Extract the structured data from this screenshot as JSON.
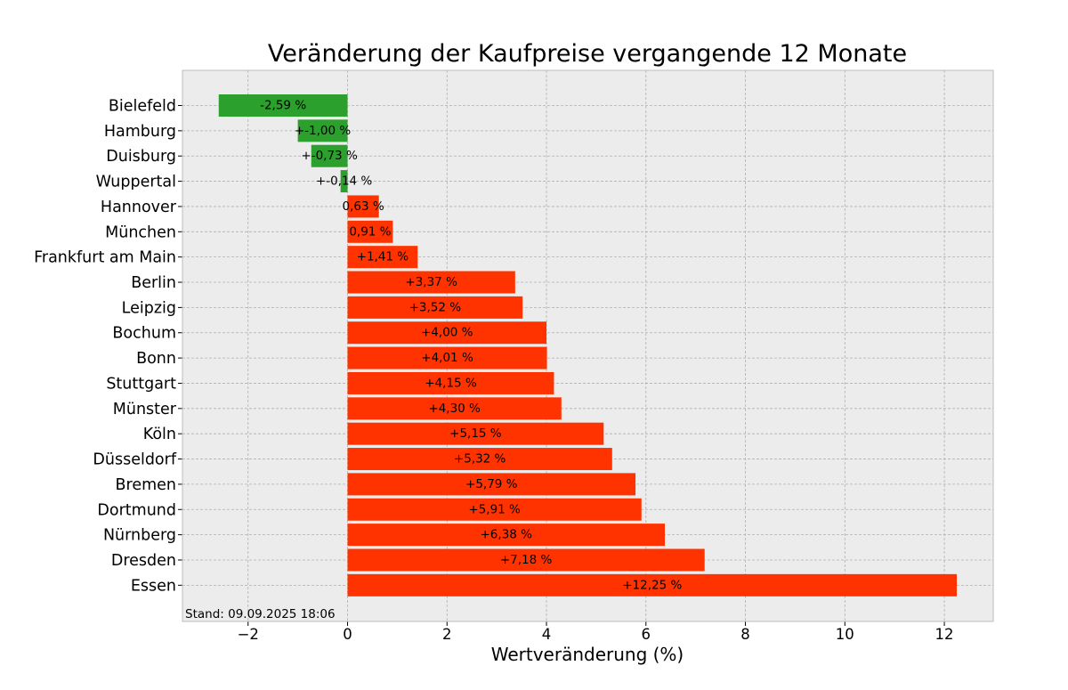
{
  "chart_data": {
    "type": "bar",
    "orientation": "horizontal",
    "title": "Veränderung der Kaufpreise vergangende 12 Monate",
    "xlabel": "Wertveränderung (%)",
    "ylabel": "",
    "xlim": [
      -3.3,
      13.0
    ],
    "xticks": [
      -2,
      0,
      2,
      4,
      6,
      8,
      10,
      12
    ],
    "xtick_labels": [
      "−2",
      "0",
      "2",
      "4",
      "6",
      "8",
      "10",
      "12"
    ],
    "grid": true,
    "categories": [
      "Bielefeld",
      "Hamburg",
      "Duisburg",
      "Wuppertal",
      "Hannover",
      "München",
      "Frankfurt am Main",
      "Berlin",
      "Leipzig",
      "Bochum",
      "Bonn",
      "Stuttgart",
      "Münster",
      "Köln",
      "Düsseldorf",
      "Bremen",
      "Dortmund",
      "Nürnberg",
      "Dresden",
      "Essen"
    ],
    "values": [
      -2.59,
      -1.0,
      -0.73,
      -0.14,
      0.63,
      0.91,
      1.41,
      3.37,
      3.52,
      4.0,
      4.01,
      4.15,
      4.3,
      5.15,
      5.32,
      5.79,
      5.91,
      6.38,
      7.18,
      12.25
    ],
    "value_labels": [
      "-2,59 %",
      "+-1,00 %",
      "+-0,73 %",
      "+-0,14 %",
      "0,63 %",
      "0,91 %",
      "+1,41 %",
      "+3,37 %",
      "+3,52 %",
      "+4,00 %",
      "+4,01 %",
      "+4,15 %",
      "+4,30 %",
      "+5,15 %",
      "+5,32 %",
      "+5,79 %",
      "+5,91 %",
      "+6,38 %",
      "+7,18 %",
      "+12,25 %"
    ],
    "colors": {
      "negative": "#2ca02c",
      "positive": "#ff3300",
      "plot_background": "#ececec",
      "frame": "#bcbcbc"
    },
    "annotation": "Stand: 09.09.2025 18:06"
  }
}
